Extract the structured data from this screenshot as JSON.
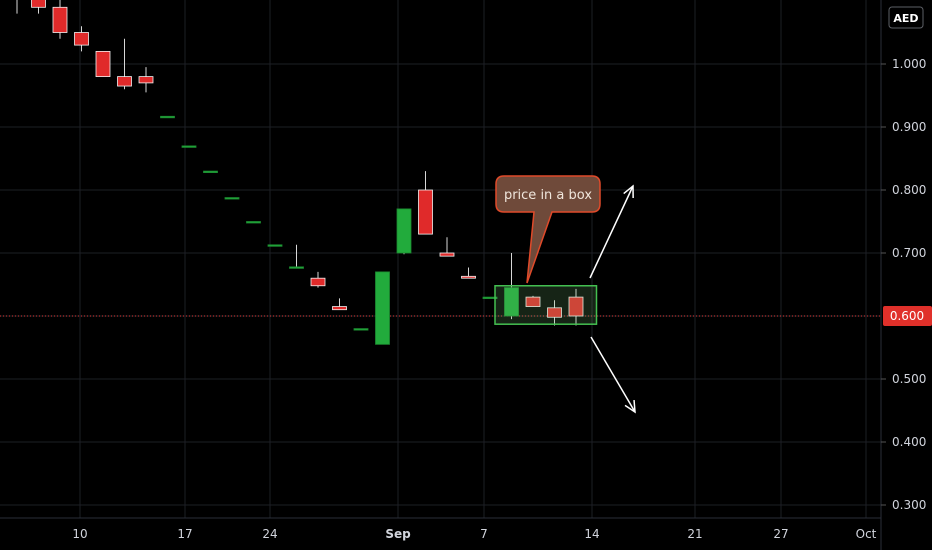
{
  "chart_data": {
    "type": "candlestick",
    "currency": "AED",
    "ylim": [
      0.285,
      1.1
    ],
    "y_ticks": [
      {
        "value": 1.0,
        "label": "1.000"
      },
      {
        "value": 0.9,
        "label": "0.900"
      },
      {
        "value": 0.8,
        "label": "0.800"
      },
      {
        "value": 0.7,
        "label": "0.700"
      },
      {
        "value": 0.5,
        "label": "0.500"
      },
      {
        "value": 0.4,
        "label": "0.400"
      },
      {
        "value": 0.3,
        "label": "0.300"
      }
    ],
    "x_ticks": [
      "10",
      "17",
      "24",
      "Sep",
      "7",
      "14",
      "21",
      "27",
      "Oct"
    ],
    "last_price": {
      "value": 0.6,
      "label": "0.600"
    },
    "grid": true,
    "candles": [
      {
        "o": 1.15,
        "h": 1.16,
        "l": 1.08,
        "c": 1.11
      },
      {
        "o": 1.12,
        "h": 1.14,
        "l": 1.08,
        "c": 1.09
      },
      {
        "o": 1.09,
        "h": 1.12,
        "l": 1.04,
        "c": 1.05
      },
      {
        "o": 1.05,
        "h": 1.06,
        "l": 1.02,
        "c": 1.03
      },
      {
        "o": 1.02,
        "h": 1.02,
        "l": 0.98,
        "c": 0.98
      },
      {
        "o": 0.98,
        "h": 1.04,
        "l": 0.96,
        "c": 0.965
      },
      {
        "o": 0.98,
        "h": 0.995,
        "l": 0.955,
        "c": 0.97
      },
      {
        "o": 0.917,
        "h": 0.917,
        "l": 0.917,
        "c": 0.917
      },
      {
        "o": 0.87,
        "h": 0.87,
        "l": 0.87,
        "c": 0.87
      },
      {
        "o": 0.83,
        "h": 0.83,
        "l": 0.83,
        "c": 0.83
      },
      {
        "o": 0.788,
        "h": 0.788,
        "l": 0.788,
        "c": 0.788
      },
      {
        "o": 0.75,
        "h": 0.75,
        "l": 0.75,
        "c": 0.75
      },
      {
        "o": 0.713,
        "h": 0.713,
        "l": 0.713,
        "c": 0.713
      },
      {
        "o": 0.678,
        "h": 0.713,
        "l": 0.678,
        "c": 0.678
      },
      {
        "o": 0.66,
        "h": 0.67,
        "l": 0.645,
        "c": 0.648
      },
      {
        "o": 0.615,
        "h": 0.628,
        "l": 0.61,
        "c": 0.61
      },
      {
        "o": 0.58,
        "h": 0.58,
        "l": 0.58,
        "c": 0.58
      },
      {
        "o": 0.555,
        "h": 0.67,
        "l": 0.555,
        "c": 0.67
      },
      {
        "o": 0.7,
        "h": 0.77,
        "l": 0.698,
        "c": 0.77
      },
      {
        "o": 0.8,
        "h": 0.83,
        "l": 0.73,
        "c": 0.73
      },
      {
        "o": 0.7,
        "h": 0.725,
        "l": 0.695,
        "c": 0.695
      },
      {
        "o": 0.663,
        "h": 0.677,
        "l": 0.66,
        "c": 0.66
      },
      {
        "o": 0.63,
        "h": 0.63,
        "l": 0.63,
        "c": 0.63
      },
      {
        "o": 0.6,
        "h": 0.7,
        "l": 0.595,
        "c": 0.645
      },
      {
        "o": 0.63,
        "h": 0.632,
        "l": 0.615,
        "c": 0.615
      },
      {
        "o": 0.613,
        "h": 0.625,
        "l": 0.585,
        "c": 0.598
      },
      {
        "o": 0.63,
        "h": 0.643,
        "l": 0.585,
        "c": 0.6
      }
    ],
    "annotations": {
      "callout_text": "price in a box"
    }
  }
}
